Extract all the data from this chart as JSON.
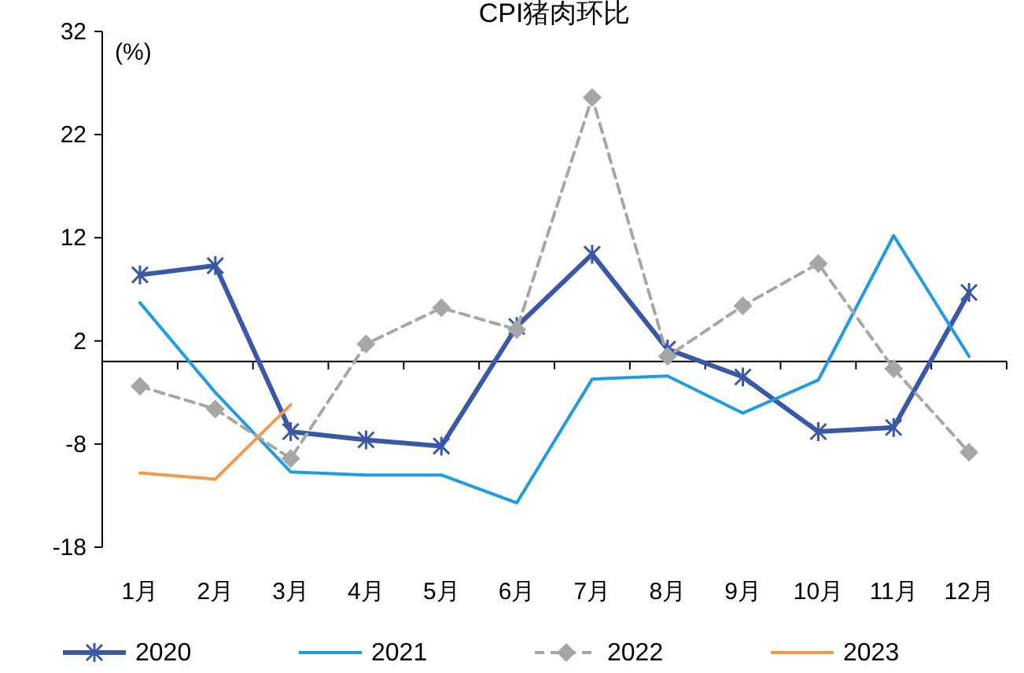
{
  "chart_data": {
    "type": "line",
    "title": "CPI猪肉环比",
    "annotations": [
      "(%)"
    ],
    "categories": [
      "1月",
      "2月",
      "3月",
      "4月",
      "5月",
      "6月",
      "7月",
      "8月",
      "9月",
      "10月",
      "11月",
      "12月"
    ],
    "ylim": [
      -18,
      32
    ],
    "yticks": [
      -18,
      -8,
      2,
      12,
      22,
      32
    ],
    "grid": false,
    "legend": "bottom",
    "series": [
      {
        "name": "2020",
        "color": "#3a58a6",
        "marker": "cross",
        "line_style": "solid",
        "values": [
          8.4,
          9.3,
          -6.8,
          -7.6,
          -8.2,
          3.4,
          10.4,
          1.2,
          -1.5,
          -6.8,
          -6.4,
          6.7
        ]
      },
      {
        "name": "2021",
        "color": "#1f9be0",
        "marker": "none",
        "line_style": "solid",
        "values": [
          5.7,
          -3.0,
          -10.7,
          -11,
          -11,
          -13.7,
          -1.7,
          -1.4,
          -5,
          -1.8,
          12.2,
          0.5
        ]
      },
      {
        "name": "2022",
        "color": "#a6a6a6",
        "marker": "diamond",
        "line_style": "dashed",
        "values": [
          -2.4,
          -4.6,
          -9.4,
          1.7,
          5.2,
          3.1,
          25.6,
          0.5,
          5.4,
          9.5,
          -0.7,
          -8.8
        ]
      },
      {
        "name": "2023",
        "color": "#f4994a",
        "marker": "none",
        "line_style": "solid",
        "values": [
          -10.8,
          -11.4,
          -4.2,
          null,
          null,
          null,
          null,
          null,
          null,
          null,
          null,
          null
        ]
      }
    ]
  }
}
